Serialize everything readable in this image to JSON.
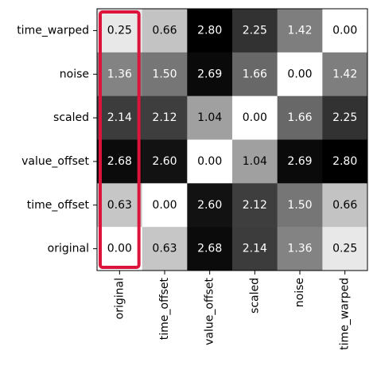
{
  "chart_data": {
    "type": "heatmap",
    "x_categories": [
      "original",
      "time_offset",
      "value_offset",
      "scaled",
      "noise",
      "time_warped"
    ],
    "y_categories": [
      "time_warped",
      "noise",
      "scaled",
      "value_offset",
      "time_offset",
      "original"
    ],
    "values": [
      [
        0.25,
        0.66,
        2.8,
        2.25,
        1.42,
        0.0
      ],
      [
        1.36,
        1.5,
        2.69,
        1.66,
        0.0,
        1.42
      ],
      [
        2.14,
        2.12,
        1.04,
        0.0,
        1.66,
        2.25
      ],
      [
        2.68,
        2.6,
        0.0,
        1.04,
        2.69,
        2.8
      ],
      [
        0.63,
        0.0,
        2.6,
        2.12,
        1.5,
        0.66
      ],
      [
        0.0,
        0.63,
        2.68,
        2.14,
        1.36,
        0.25
      ]
    ],
    "value_range": [
      0.0,
      2.8
    ],
    "colormap": "greys",
    "grid": false,
    "highlight": {
      "column": "original",
      "color": "#dc143c"
    }
  }
}
